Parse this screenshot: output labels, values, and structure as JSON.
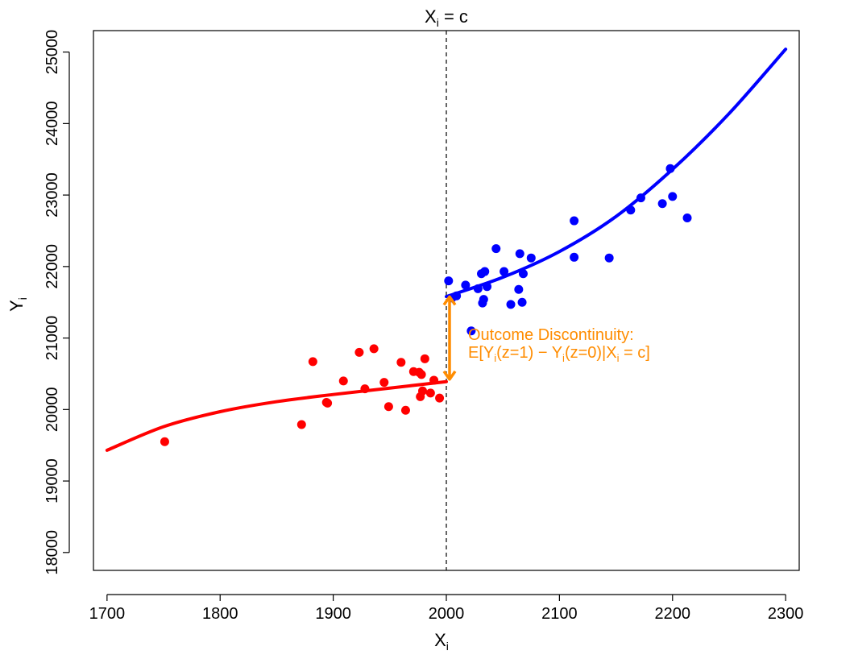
{
  "chart_data": {
    "type": "scatter",
    "title": "",
    "xlabel": "X",
    "xlabel_sub": "i",
    "ylabel": "Y",
    "ylabel_sub": "i",
    "xlim": [
      1688,
      2312
    ],
    "ylim": [
      17750,
      25300
    ],
    "x_ticks": [
      1700,
      1800,
      1900,
      2000,
      2100,
      2200,
      2300
    ],
    "y_ticks": [
      18000,
      19000,
      20000,
      21000,
      22000,
      23000,
      24000,
      25000
    ],
    "grid": false,
    "colors": {
      "control": "#ff0000",
      "treated": "#0000ff",
      "annotation": "#ff8c00",
      "cutoff": "#000000"
    },
    "cutoff": {
      "x": 2000,
      "label_main": "X",
      "label_sub": "i",
      "label_rest": " = c"
    },
    "series": [
      {
        "points": [
          [
            1751,
            19550
          ],
          [
            1872,
            19790
          ],
          [
            1882,
            20670
          ],
          [
            1894,
            20100
          ],
          [
            1895,
            20090
          ],
          [
            1909,
            20400
          ],
          [
            1923,
            20800
          ],
          [
            1928,
            20290
          ],
          [
            1936,
            20850
          ],
          [
            1945,
            20380
          ],
          [
            1949,
            20040
          ],
          [
            1960,
            20660
          ],
          [
            1964,
            19990
          ],
          [
            1971,
            20530
          ],
          [
            1976,
            20520
          ],
          [
            1977,
            20180
          ],
          [
            1978,
            20490
          ],
          [
            1979,
            20260
          ],
          [
            1981,
            20710
          ],
          [
            1986,
            20230
          ],
          [
            1989,
            20410
          ],
          [
            1994,
            20160
          ]
        ],
        "curve": [
          [
            1700,
            19430
          ],
          [
            1750,
            19760
          ],
          [
            1800,
            19970
          ],
          [
            1850,
            20110
          ],
          [
            1900,
            20210
          ],
          [
            1950,
            20300
          ],
          [
            2000,
            20390
          ]
        ]
      },
      {
        "points": [
          [
            2002,
            21800
          ],
          [
            2005,
            21560
          ],
          [
            2009,
            21590
          ],
          [
            2017,
            21740
          ],
          [
            2022,
            21100
          ],
          [
            2028,
            21690
          ],
          [
            2031,
            21900
          ],
          [
            2032,
            21490
          ],
          [
            2033,
            21540
          ],
          [
            2034,
            21930
          ],
          [
            2036,
            21720
          ],
          [
            2044,
            22250
          ],
          [
            2051,
            21930
          ],
          [
            2057,
            21470
          ],
          [
            2064,
            21680
          ],
          [
            2065,
            22180
          ],
          [
            2067,
            21500
          ],
          [
            2068,
            21900
          ],
          [
            2075,
            22120
          ],
          [
            2113,
            22640
          ],
          [
            2113,
            22130
          ],
          [
            2144,
            22120
          ],
          [
            2163,
            22790
          ],
          [
            2172,
            22960
          ],
          [
            2191,
            22880
          ],
          [
            2198,
            23370
          ],
          [
            2200,
            22980
          ],
          [
            2213,
            22680
          ]
        ],
        "curve": [
          [
            2000,
            21580
          ],
          [
            2050,
            21850
          ],
          [
            2100,
            22210
          ],
          [
            2150,
            22700
          ],
          [
            2200,
            23360
          ],
          [
            2250,
            24140
          ],
          [
            2300,
            25040
          ]
        ]
      }
    ],
    "annotation": {
      "arrow_from": [
        2000,
        20400
      ],
      "arrow_to": [
        2000,
        21600
      ],
      "line1": "Outcome Discontinuity:",
      "line2_parts": [
        {
          "t": "E[Y",
          "sub": false
        },
        {
          "t": "i",
          "sub": true
        },
        {
          "t": "(z=1) − Y",
          "sub": false
        },
        {
          "t": "i",
          "sub": true
        },
        {
          "t": "(z=0)|X",
          "sub": false
        },
        {
          "t": "i",
          "sub": true
        },
        {
          "t": " = c]",
          "sub": false
        }
      ]
    }
  }
}
